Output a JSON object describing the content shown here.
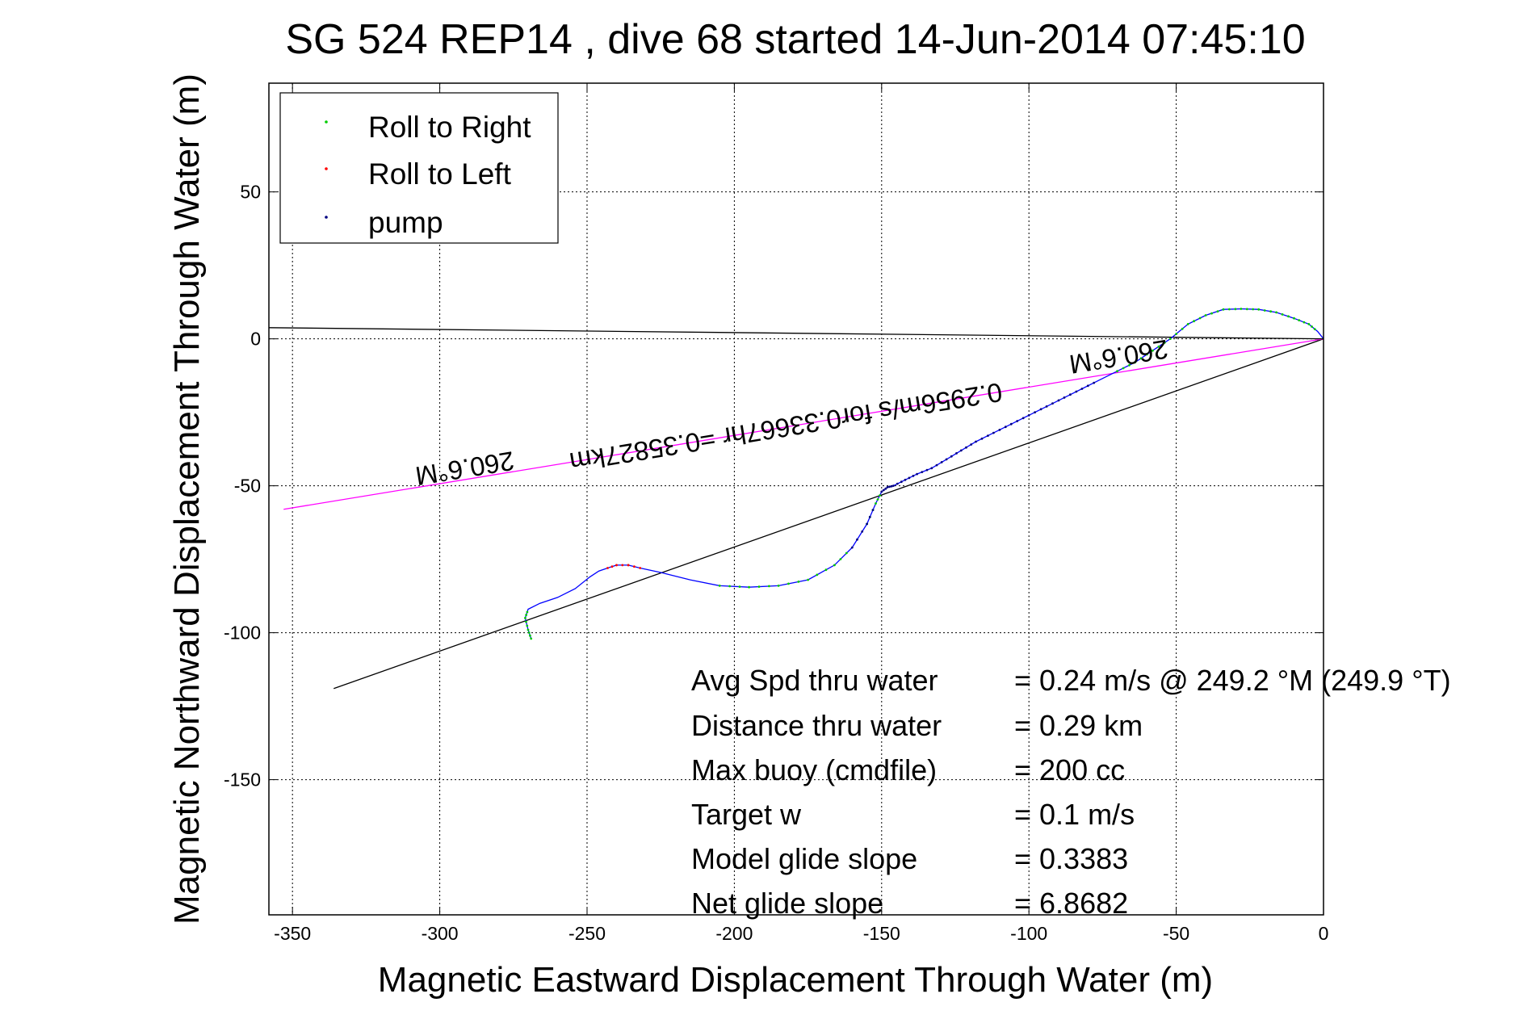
{
  "chart_data": {
    "type": "line",
    "title": "SG 524   REP14  , dive 68 started 14-Jun-2014 07:45:10",
    "xlabel": "Magnetic Eastward Displacement Through Water (m)",
    "ylabel": "Magnetic Northward Displacement Through Water (m)",
    "xlim": [
      -358,
      0
    ],
    "ylim": [
      -196,
      87
    ],
    "xticks": [
      -350,
      -300,
      -250,
      -200,
      -150,
      -100,
      -50,
      0
    ],
    "yticks": [
      50,
      0,
      -50,
      -100,
      -150
    ],
    "grid": true,
    "legend_position": "top-left",
    "legend": [
      {
        "label": "Roll to Right",
        "color": "#00cc00"
      },
      {
        "label": "Roll to Left",
        "color": "#ff0000"
      },
      {
        "label": "pump",
        "color": "#000080"
      }
    ],
    "track": {
      "color": "#0000ff",
      "x": [
        -269,
        -270,
        -271,
        -270,
        -266,
        -260,
        -254,
        -249,
        -246,
        -243,
        -240,
        -236,
        -232,
        -225,
        -215,
        -205,
        -195,
        -185,
        -175,
        -166,
        -160,
        -155,
        -152,
        -150,
        -148,
        -146,
        -142,
        -138,
        -133,
        -128,
        -123,
        -118,
        -112,
        -106,
        -100,
        -94,
        -88,
        -82,
        -76,
        -70,
        -64,
        -58,
        -52,
        -46,
        -40,
        -34,
        -28,
        -22,
        -16,
        -10,
        -5,
        -2,
        0
      ],
      "y": [
        -102,
        -99,
        -95,
        -92,
        -90,
        -88,
        -85,
        -81,
        -79,
        -78,
        -77,
        -77,
        -78,
        -79.5,
        -82,
        -84,
        -84.5,
        -84,
        -82,
        -77,
        -71,
        -63,
        -56,
        -52,
        -50.5,
        -50,
        -48,
        -46,
        -44,
        -41,
        -38,
        -35,
        -32,
        -29,
        -26,
        -23,
        -20,
        -17,
        -14,
        -11,
        -8,
        -4,
        0,
        5,
        8,
        10,
        10.2,
        10,
        9,
        7,
        5,
        2.5,
        0
      ]
    },
    "roll_right_ranges": [
      [
        0,
        3
      ],
      [
        15,
        20
      ],
      [
        21,
        23
      ],
      [
        39,
        51
      ]
    ],
    "roll_left_ranges": [
      [
        9,
        12
      ]
    ],
    "pump_ranges": [
      [
        20,
        22
      ],
      [
        23,
        38
      ]
    ],
    "reference_lines": [
      {
        "color": "#000000",
        "x": [
          -336,
          0
        ],
        "y": [
          -119,
          0
        ]
      },
      {
        "color": "#000000",
        "x": [
          -358,
          0
        ],
        "y": [
          3.8,
          0
        ]
      },
      {
        "color": "#ff00ff",
        "x": [
          -353,
          0
        ],
        "y": [
          -58,
          0
        ]
      }
    ],
    "annotations": [
      {
        "text": "260.6°M",
        "x": -292,
        "y": -41
      },
      {
        "text": "0.2956m/s for0.33667hr =0.35827km",
        "x": -183,
        "y": -27
      },
      {
        "text": "260.6°M",
        "x": -70,
        "y": -3
      }
    ],
    "stats": [
      {
        "label": "Avg Spd thru water",
        "value": "=  0.24 m/s @ 249.2 °M (249.9 °T)"
      },
      {
        "label": "Distance thru water",
        "value": "=  0.29 km"
      },
      {
        "label": "Max buoy (cmdfile)",
        "value": "= 200 cc"
      },
      {
        "label": "Target w",
        "value": "= 0.1 m/s"
      },
      {
        "label": "Model glide slope",
        "value": "= 0.3383"
      },
      {
        "label": "Net glide slope",
        "value": "= 6.8682"
      }
    ]
  }
}
